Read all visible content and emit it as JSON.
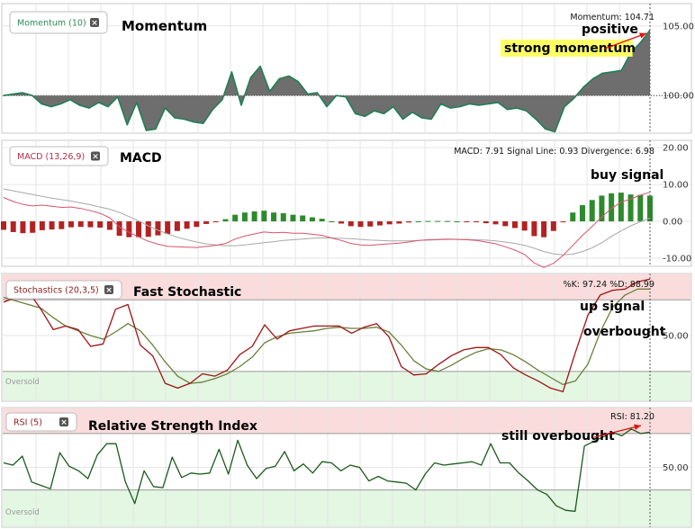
{
  "chart_data": [
    {
      "type": "area",
      "indicator": "Momentum (10)",
      "annotation": "Momentum",
      "readout": "Momentum: 104.71",
      "baseline": 100,
      "ylim": [
        97.3,
        106.6
      ],
      "y_ticks": [
        "105.00",
        "100.00"
      ],
      "notes": [
        "positive",
        "strong momentum"
      ],
      "series": [
        {
          "values": [
            100.0,
            100.1,
            100.2,
            100.0,
            99.4,
            99.2,
            99.4,
            99.7,
            99.3,
            99.1,
            99.5,
            99.2,
            99.9,
            97.9,
            99.5,
            97.5,
            97.6,
            99.1,
            98.4,
            98.3,
            98.1,
            98.0,
            99.0,
            99.7,
            101.7,
            99.3,
            101.3,
            102.1,
            100.3,
            101.2,
            101.4,
            101.0,
            100.1,
            100.2,
            99.2,
            100.0,
            99.9,
            98.7,
            98.5,
            98.9,
            98.7,
            99.2,
            98.3,
            98.8,
            98.4,
            98.3,
            99.4,
            99.1,
            99.2,
            99.4,
            99.3,
            99.4,
            99.5,
            99.0,
            99.1,
            98.9,
            98.3,
            97.6,
            97.4,
            99.2,
            99.8,
            100.6,
            101.2,
            101.6,
            101.7,
            101.8,
            103.1,
            103.8,
            104.71
          ]
        }
      ]
    },
    {
      "type": "bar",
      "indicator": "MACD (13,26,9)",
      "annotation": "MACD",
      "readout": "MACD: 7.91 Signal Line: 0.93 Divergence: 6.98",
      "ylim": [
        -12.2,
        22.0
      ],
      "y_ticks": [
        "20.00",
        "10.00",
        "0.00",
        "-10.00"
      ],
      "notes": [
        "buy signal"
      ],
      "series": [
        {
          "name": "MACD",
          "values": [
            6.5,
            5.4,
            4.6,
            4.2,
            4.4,
            4.1,
            3.8,
            3.9,
            3.5,
            2.9,
            2.2,
            1.0,
            -1.5,
            -3.0,
            -4.2,
            -5.4,
            -6.2,
            -6.8,
            -6.9,
            -7.0,
            -7.1,
            -6.8,
            -6.5,
            -6.0,
            -4.8,
            -4.0,
            -3.4,
            -2.9,
            -3.1,
            -3.0,
            -3.2,
            -3.2,
            -3.5,
            -3.8,
            -4.5,
            -5.2,
            -6.0,
            -6.4,
            -6.5,
            -6.3,
            -6.1,
            -5.9,
            -5.6,
            -5.2,
            -5.0,
            -4.9,
            -4.8,
            -4.9,
            -5.0,
            -5.2,
            -5.6,
            -6.1,
            -6.9,
            -7.8,
            -9.0,
            -11.3,
            -12.5,
            -11.4,
            -9.2,
            -6.5,
            -3.8,
            -1.4,
            1.2,
            3.5,
            5.2,
            6.1,
            7.1,
            7.91
          ]
        },
        {
          "name": "Signal Line",
          "values": [
            8.8,
            8.3,
            7.8,
            7.3,
            6.8,
            6.3,
            5.9,
            5.5,
            5.0,
            4.5,
            3.9,
            3.3,
            2.4,
            1.3,
            0.1,
            -1.2,
            -2.4,
            -3.4,
            -4.3,
            -5.0,
            -5.6,
            -6.1,
            -6.4,
            -6.6,
            -6.6,
            -6.4,
            -6.1,
            -5.8,
            -5.5,
            -5.2,
            -5.0,
            -4.8,
            -4.6,
            -4.5,
            -4.5,
            -4.6,
            -4.7,
            -4.9,
            -5.1,
            -5.2,
            -5.3,
            -5.3,
            -5.3,
            -5.2,
            -5.1,
            -5.0,
            -4.9,
            -4.9,
            -4.9,
            -5.0,
            -5.1,
            -5.3,
            -5.6,
            -6.0,
            -6.5,
            -7.3,
            -8.2,
            -8.8,
            -9.1,
            -8.9,
            -8.2,
            -7.2,
            -5.8,
            -4.1,
            -2.6,
            -1.2,
            -0.1,
            0.93
          ]
        },
        {
          "name": "Divergence",
          "values": [
            -2.3,
            -2.9,
            -3.2,
            -3.1,
            -2.4,
            -2.2,
            -2.1,
            -1.6,
            -1.5,
            -1.6,
            -1.7,
            -2.3,
            -3.9,
            -4.3,
            -4.3,
            -4.2,
            -3.8,
            -3.4,
            -2.6,
            -2.0,
            -1.5,
            -0.7,
            -0.1,
            0.6,
            1.8,
            2.4,
            2.7,
            2.9,
            2.4,
            2.2,
            1.8,
            1.6,
            1.1,
            0.7,
            0.0,
            -0.6,
            -1.3,
            -1.5,
            -1.4,
            -1.1,
            -0.8,
            -0.6,
            -0.3,
            0.0,
            0.1,
            0.1,
            0.1,
            0.0,
            -0.1,
            -0.2,
            -0.5,
            -0.8,
            -1.3,
            -1.8,
            -2.5,
            -4.0,
            -4.3,
            -2.6,
            -0.1,
            2.4,
            4.4,
            5.8,
            7.0,
            7.6,
            7.8,
            7.3,
            7.2,
            6.98
          ]
        }
      ]
    },
    {
      "type": "line",
      "indicator": "Stochastics (20,3,5)",
      "annotation": "Fast Stochastic",
      "readout": "%K: 97.24 %D: 88.99",
      "ylim": [
        -5,
        102
      ],
      "y_ticks": [
        "50.00"
      ],
      "overbought": 80,
      "oversold": 20,
      "zone_label": "Oversold",
      "notes": [
        "up signal",
        "overbought"
      ],
      "series": [
        {
          "name": "%K",
          "values": [
            78,
            82,
            87,
            72,
            55,
            58,
            55,
            41,
            43,
            72,
            76,
            42,
            33,
            10,
            6,
            10,
            18,
            16,
            21,
            34,
            41,
            59,
            47,
            54,
            56,
            58,
            58,
            58,
            52,
            57,
            60,
            49,
            24,
            17,
            18,
            26,
            33,
            38,
            40,
            40,
            34,
            23,
            17,
            12,
            6,
            3,
            36,
            67,
            84,
            88,
            89,
            95,
            97.24
          ]
        },
        {
          "name": "%D",
          "values": [
            82,
            79,
            76,
            73,
            65,
            58,
            54,
            50,
            47,
            53,
            60,
            54,
            42,
            28,
            16,
            10,
            11,
            14,
            18,
            24,
            32,
            44,
            49,
            52,
            53,
            54,
            56,
            57,
            56,
            56,
            57,
            53,
            42,
            29,
            22,
            20,
            25,
            31,
            36,
            39,
            38,
            34,
            28,
            21,
            15,
            9,
            12,
            26,
            53,
            74,
            84,
            89,
            88.99
          ]
        }
      ]
    },
    {
      "type": "line",
      "indicator": "RSI (5)",
      "annotation": "Relative Strength Index",
      "readout": "RSI: 81.20",
      "ylim": [
        -3,
        103
      ],
      "y_ticks": [
        "50.00"
      ],
      "overbought": 80,
      "oversold": 30,
      "zone_label": "Oversold",
      "notes": [
        "still overbought"
      ],
      "series": [
        {
          "name": "RSI",
          "values": [
            54,
            52,
            60,
            37,
            34,
            31,
            63,
            51,
            47,
            40,
            61,
            71,
            71,
            37,
            18,
            47,
            33,
            32,
            59,
            41,
            45,
            44,
            45,
            66,
            44,
            74,
            52,
            40,
            49,
            51,
            64,
            47,
            53,
            45,
            55,
            54,
            47,
            52,
            50,
            38,
            42,
            38,
            37,
            36,
            30,
            44,
            54,
            52,
            53,
            54,
            55,
            52,
            71,
            54,
            54,
            45,
            38,
            30,
            26,
            16,
            12,
            11,
            69,
            73,
            77,
            81,
            78,
            84,
            80,
            81.2
          ]
        }
      ]
    }
  ],
  "colors": {
    "momentum_fill": "#6e6e6e",
    "momentum_line": "#1f7f56",
    "macd_hist_neg": "#b22222",
    "macd_hist_pos": "#2d8a2d",
    "macd_line": "#d9536b",
    "signal_line": "#a8a8a8",
    "stoch_k": "#a01414",
    "stoch_d": "#6b7f3a",
    "rsi_line": "#1d5a1d",
    "overbought_zone": "#fadcdc",
    "oversold_zone": "#e3f7e3",
    "highlight_box": "#ffff66",
    "arrow": "#e01010",
    "grid": "#e6e6e6"
  },
  "icons": {
    "close": "close-icon"
  }
}
